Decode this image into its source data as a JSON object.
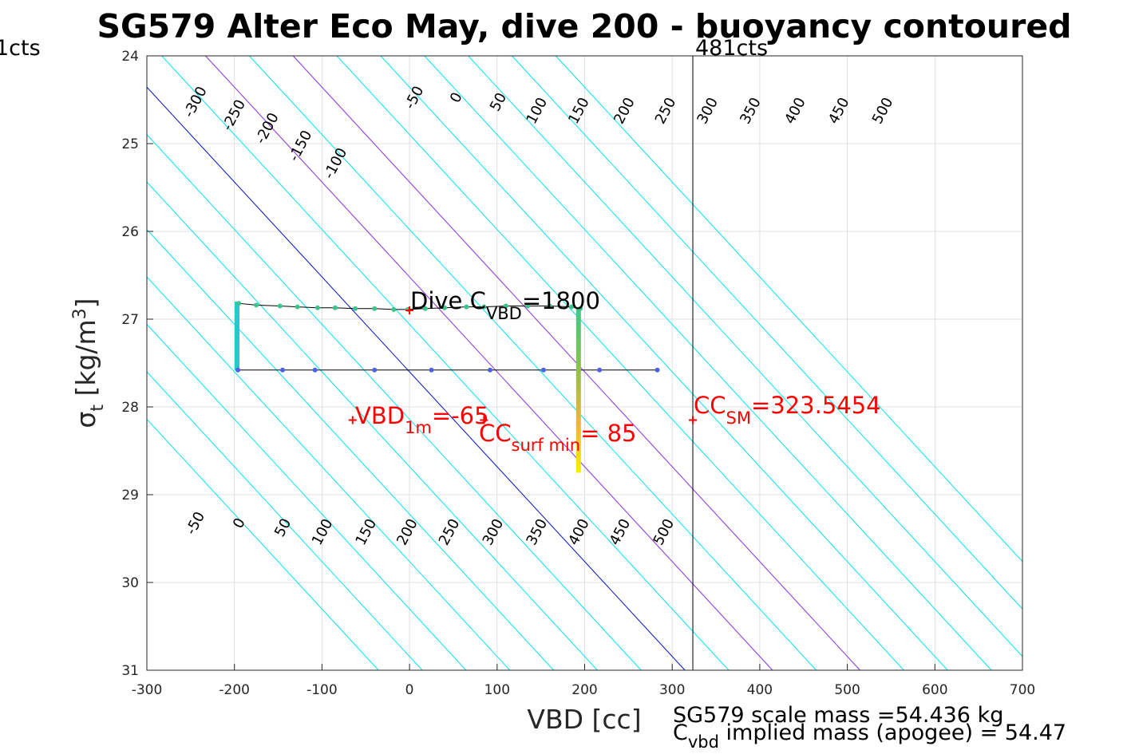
{
  "chart_data": {
    "type": "scatter",
    "title": "SG579 Alter Eco May, dive 200 - buoyancy contoured",
    "xlabel": "VBD [cc]",
    "ylabel_symbol": "σ",
    "ylabel_sub": "t",
    "ylabel_unit_prefix": " [kg/m",
    "ylabel_unit_sup": "3",
    "ylabel_unit_suffix": "]",
    "xlim": [
      -300,
      700
    ],
    "ylim": [
      24,
      31
    ],
    "y_reversed": true,
    "grid": true,
    "xticks": [
      "-300",
      "-200",
      "-100",
      "0",
      "100",
      "200",
      "300",
      "400",
      "500",
      "600",
      "700"
    ],
    "yticks": [
      "24",
      "25",
      "26",
      "27",
      "28",
      "29",
      "30",
      "31"
    ],
    "contours": {
      "slope_cc_per_sigma": 92.5,
      "cyan_levels": [
        -350,
        -300,
        -250,
        -200,
        -150,
        -100,
        -50,
        50,
        100,
        150,
        200,
        250,
        300,
        350,
        400,
        450,
        500
      ],
      "magenta_levels": [
        100,
        200
      ],
      "blue_levels": [
        0
      ],
      "colors": {
        "cyan": "#00e5ee",
        "magenta": "#b030e0",
        "blue": "#0010c8"
      },
      "upper_labels": [
        "-300",
        "-250",
        "-200",
        "-150",
        "-100",
        "-50",
        "0",
        "50",
        "100",
        "150",
        "200",
        "250",
        "300",
        "350",
        "400",
        "450",
        "500"
      ],
      "lower_labels": [
        "-50",
        "0",
        "50",
        "100",
        "150",
        "200",
        "250",
        "300",
        "350",
        "400",
        "450",
        "500"
      ]
    },
    "upper_label_points": [
      {
        "text": "-300",
        "x": -240,
        "y": 24.55
      },
      {
        "text": "-250",
        "x": -196,
        "y": 24.7
      },
      {
        "text": "-200",
        "x": -158,
        "y": 24.85
      },
      {
        "text": "-150",
        "x": -120,
        "y": 25.05
      },
      {
        "text": "-100",
        "x": -80,
        "y": 25.25
      },
      {
        "text": "-50",
        "x": 10,
        "y": 24.5
      },
      {
        "text": "0",
        "x": 58,
        "y": 24.5
      },
      {
        "text": "50",
        "x": 106,
        "y": 24.55
      },
      {
        "text": "100",
        "x": 150,
        "y": 24.65
      },
      {
        "text": "150",
        "x": 198,
        "y": 24.65
      },
      {
        "text": "200",
        "x": 250,
        "y": 24.65
      },
      {
        "text": "250",
        "x": 297,
        "y": 24.65
      },
      {
        "text": "300",
        "x": 345,
        "y": 24.65
      },
      {
        "text": "350",
        "x": 394,
        "y": 24.65
      },
      {
        "text": "400",
        "x": 445,
        "y": 24.65
      },
      {
        "text": "450",
        "x": 495,
        "y": 24.65
      },
      {
        "text": "500",
        "x": 545,
        "y": 24.65
      }
    ],
    "lower_label_points": [
      {
        "text": "-50",
        "x": -240,
        "y": 29.35
      },
      {
        "text": "0",
        "x": -190,
        "y": 29.35
      },
      {
        "text": "50",
        "x": -140,
        "y": 29.4
      },
      {
        "text": "100",
        "x": -95,
        "y": 29.45
      },
      {
        "text": "150",
        "x": -45,
        "y": 29.45
      },
      {
        "text": "200",
        "x": 2,
        "y": 29.45
      },
      {
        "text": "250",
        "x": 50,
        "y": 29.45
      },
      {
        "text": "300",
        "x": 100,
        "y": 29.45
      },
      {
        "text": "350",
        "x": 150,
        "y": 29.45
      },
      {
        "text": "400",
        "x": 198,
        "y": 29.45
      },
      {
        "text": "450",
        "x": 245,
        "y": 29.45
      },
      {
        "text": "500",
        "x": 295,
        "y": 29.45
      }
    ],
    "dive_path_upper": [
      {
        "x": -195,
        "y": 26.82
      },
      {
        "x": -175,
        "y": 26.84
      },
      {
        "x": -148,
        "y": 26.85
      },
      {
        "x": -128,
        "y": 26.86
      },
      {
        "x": -105,
        "y": 26.87
      },
      {
        "x": -85,
        "y": 26.87
      },
      {
        "x": -62,
        "y": 26.88
      },
      {
        "x": -40,
        "y": 26.88
      },
      {
        "x": -18,
        "y": 26.89
      },
      {
        "x": -2,
        "y": 26.89
      },
      {
        "x": 18,
        "y": 26.88
      },
      {
        "x": 40,
        "y": 26.87
      },
      {
        "x": 65,
        "y": 26.86
      },
      {
        "x": 85,
        "y": 26.86
      },
      {
        "x": 110,
        "y": 26.85
      },
      {
        "x": 135,
        "y": 26.85
      },
      {
        "x": 160,
        "y": 26.85
      },
      {
        "x": 185,
        "y": 26.86
      },
      {
        "x": 195,
        "y": 26.88
      }
    ],
    "dive_path_lower": [
      {
        "x": -196,
        "y": 27.58
      },
      {
        "x": -145,
        "y": 27.58
      },
      {
        "x": -108,
        "y": 27.58
      },
      {
        "x": -40,
        "y": 27.58
      },
      {
        "x": 25,
        "y": 27.58
      },
      {
        "x": 92,
        "y": 27.58
      },
      {
        "x": 153,
        "y": 27.58
      },
      {
        "x": 217,
        "y": 27.58
      },
      {
        "x": 283,
        "y": 27.58
      }
    ],
    "vertical_column_left": {
      "x": -197,
      "y_top": 26.8,
      "y_bottom": 27.58
    },
    "vertical_column_right": {
      "x": 193,
      "y_top": 26.88,
      "y_bottom": 28.75
    },
    "cc_sm_line_x": 323.5454,
    "markers": [
      {
        "x": -65,
        "y": 28.15,
        "color": "#ff0000"
      },
      {
        "x": 323.5454,
        "y": 28.15,
        "color": "#ff0000"
      },
      {
        "x": 85,
        "y": 28.15,
        "color": "#ff0000"
      },
      {
        "x": 0,
        "y": 26.9,
        "color": "#ff0000"
      }
    ],
    "annotations": {
      "dive_c": {
        "prefix": "Dive C",
        "sub": "VBD",
        "suffix": "=1800",
        "x": 0,
        "y": 26.8,
        "color": "#000000"
      },
      "vbd_1m": {
        "prefix": "VBD",
        "sub": "1m",
        "suffix": "=-65",
        "x": -60,
        "y": 28.18,
        "color": "#ff0000"
      },
      "cc_surf": {
        "prefix": "CC",
        "sub": "surf min",
        "suffix": "= 85",
        "x": 80,
        "y": 28.4,
        "color": "#ff0000"
      },
      "cc_sm": {
        "prefix": "CC",
        "sub": "SM",
        "suffix": "=323.5454",
        "x": 327,
        "y": 28.1,
        "color": "#ff0000"
      }
    },
    "left_counts_label": "1cts",
    "right_counts_label": "481cts",
    "bottom_text_line1": "SG579 scale mass =54.436 kg",
    "bottom_text_line2_prefix": "C",
    "bottom_text_line2_sub": "vbd",
    "bottom_text_line2_suffix": " implied mass (apogee) = 54.47"
  }
}
